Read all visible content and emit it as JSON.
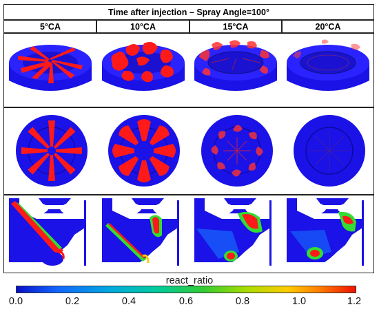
{
  "figure": {
    "title": "Time after injection – Spray Angle=100°",
    "columns": [
      "5°CA",
      "10°CA",
      "15°CA",
      "20°CA"
    ]
  },
  "legend": {
    "title": "react_ratio",
    "ticks": [
      "0.0",
      "0.2",
      "0.4",
      "0.6",
      "0.8",
      "1.0",
      "1.2"
    ],
    "min_color": "#0a10c8",
    "max_color": "#ee1100"
  },
  "colors": {
    "background_field": "#1a12e6",
    "spray": "#ff1a1a"
  }
}
